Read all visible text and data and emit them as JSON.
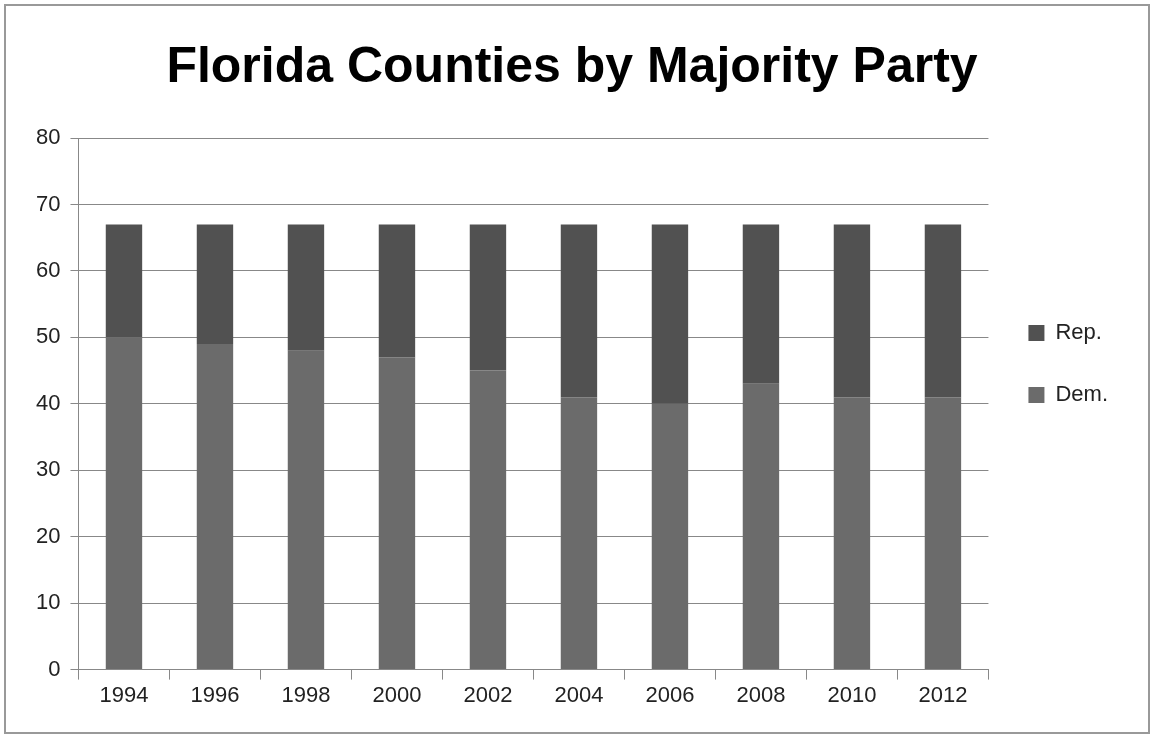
{
  "chart_data": {
    "type": "bar",
    "title": "Florida Counties by Majority Party",
    "stacked": true,
    "categories": [
      "1994",
      "1996",
      "1998",
      "2000",
      "2002",
      "2004",
      "2006",
      "2008",
      "2010",
      "2012"
    ],
    "series": [
      {
        "name": "Dem.",
        "color": "#6b6b6b",
        "values": [
          50,
          49,
          48,
          47,
          45,
          41,
          40,
          43,
          41,
          41
        ]
      },
      {
        "name": "Rep.",
        "color": "#515151",
        "values": [
          17,
          18,
          19,
          20,
          22,
          26,
          27,
          24,
          26,
          26
        ]
      }
    ],
    "ylim": [
      0,
      80
    ],
    "yticks": [
      0,
      10,
      20,
      30,
      40,
      50,
      60,
      70,
      80
    ],
    "grid": "y",
    "legend": "right"
  }
}
